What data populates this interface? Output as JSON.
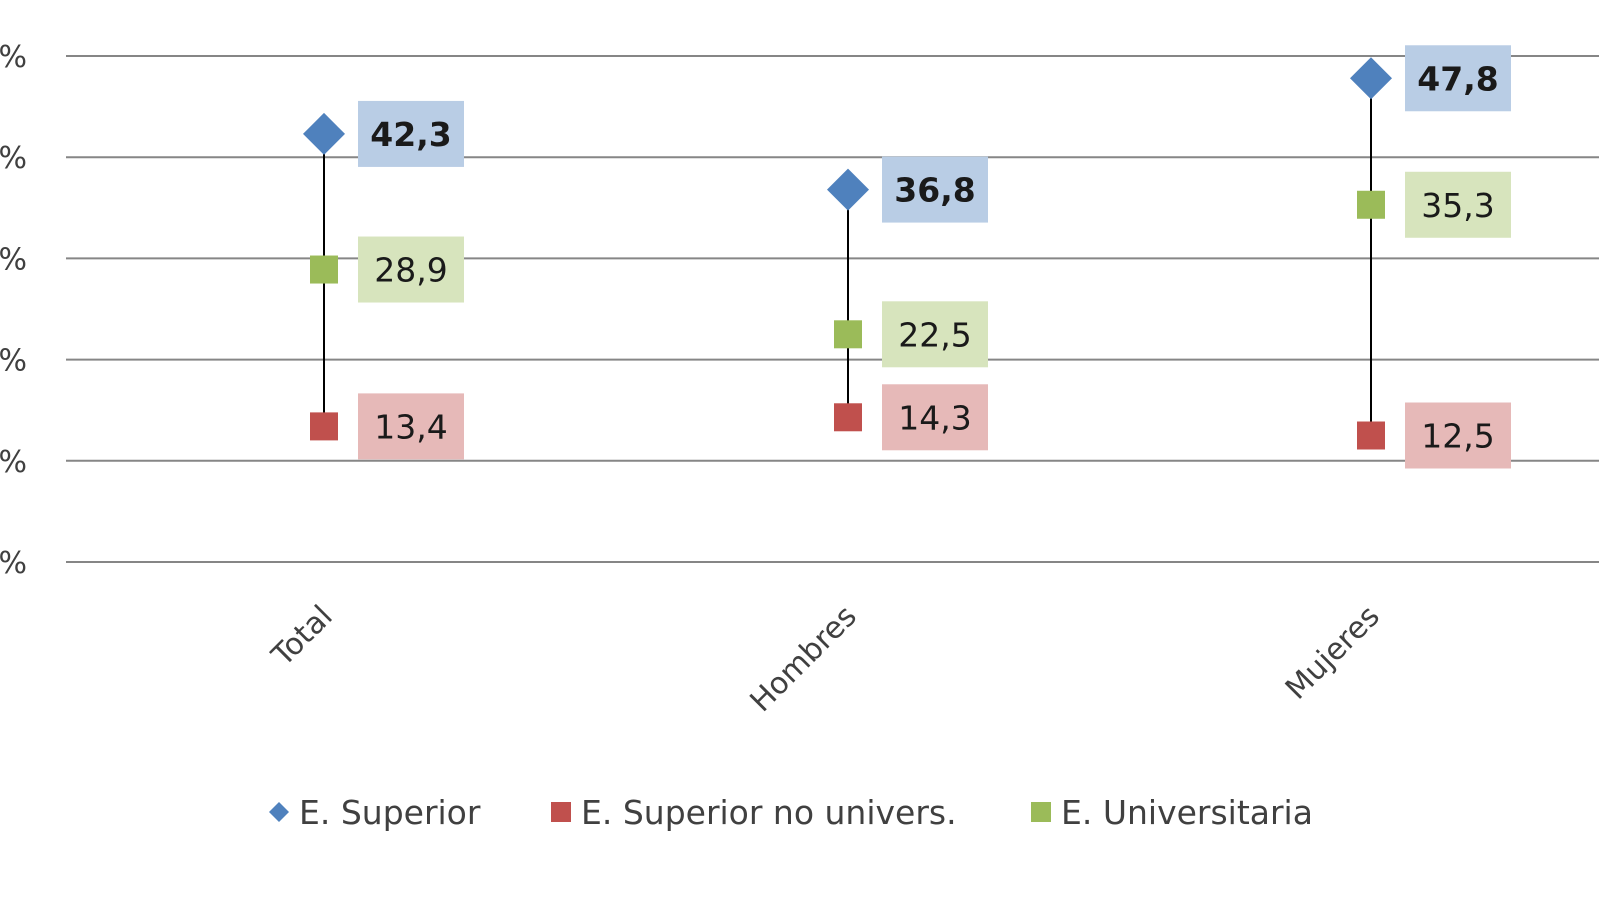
{
  "chart_data": {
    "type": "scatter",
    "categories": [
      "Total",
      "Hombres",
      "Mujeres"
    ],
    "y_tick_labels": [
      "%",
      "%",
      "%",
      "%",
      "%",
      "%"
    ],
    "ylim": [
      0,
      50
    ],
    "grid": true,
    "legend_position": "bottom",
    "series": [
      {
        "name": "E. Superior",
        "marker": "diamond",
        "color": "#4f81bd",
        "label_bg": "#b9cde5",
        "bold_labels": true,
        "values": [
          42.3,
          36.8,
          47.8
        ],
        "labels": [
          "42,3",
          "36,8",
          "47,8"
        ]
      },
      {
        "name": "E. Superior no univers.",
        "marker": "square",
        "color": "#c0504d",
        "label_bg": "#e6b9b8",
        "bold_labels": false,
        "values": [
          13.4,
          14.3,
          12.5
        ],
        "labels": [
          "13,4",
          "14,3",
          "12,5"
        ]
      },
      {
        "name": "E. Universitaria",
        "marker": "square",
        "color": "#9bbb59",
        "label_bg": "#d7e4bd",
        "bold_labels": false,
        "values": [
          28.9,
          22.5,
          35.3
        ],
        "labels": [
          "28,9",
          "22,5",
          "35,3"
        ]
      }
    ],
    "gridline_color": "#868686",
    "connector_color": "#000000"
  }
}
